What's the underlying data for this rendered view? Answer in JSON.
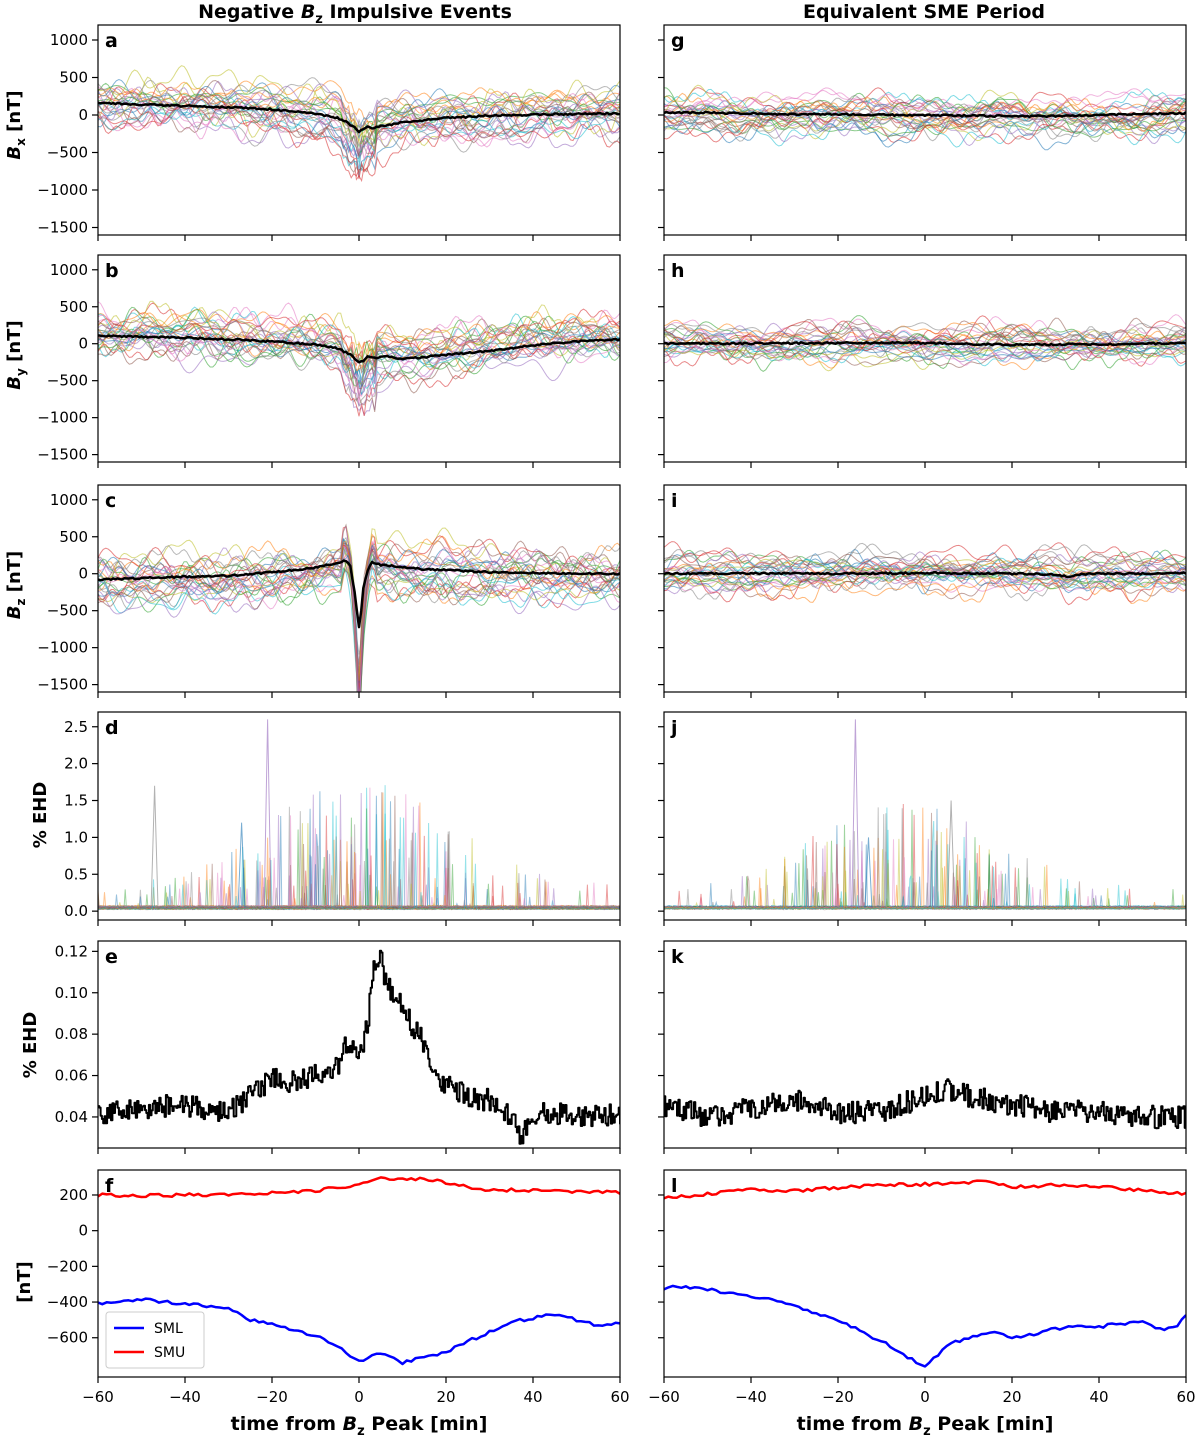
{
  "figure": {
    "columns": [
      {
        "title_prefix": "Negative ",
        "title_symbol": "B",
        "title_sub": "z",
        "title_suffix": " Impulsive Events"
      },
      {
        "title_prefix": "Equivalent SME Period",
        "title_symbol": "",
        "title_sub": "",
        "title_suffix": ""
      }
    ],
    "xlabel": {
      "prefix": "time from ",
      "symbol": "B",
      "sub": "z",
      "suffix": " Peak [min]"
    },
    "x_ticks": [
      "−60",
      "−40",
      "−20",
      "0",
      "20",
      "40",
      "60"
    ],
    "legend": {
      "placement": "lower-left",
      "entries": [
        {
          "name": "SML",
          "color": "#0000ff"
        },
        {
          "name": "SMU",
          "color": "#ff0000"
        }
      ]
    },
    "mean_line_color": "#000000",
    "thin_line_colors": [
      "#1f77b4",
      "#ff7f0e",
      "#2ca02c",
      "#d62728",
      "#9467bd",
      "#8c564b",
      "#e377c2",
      "#7f7f7f",
      "#bcbd22",
      "#17becf"
    ]
  },
  "rows": [
    {
      "key": "bx",
      "ylabel": {
        "symbol": "B",
        "sub": "x",
        "suffix": " [nT]"
      },
      "y_ticks": [
        "1000",
        "500",
        "0",
        "−500",
        "−1000",
        "−1500"
      ]
    },
    {
      "key": "by",
      "ylabel": {
        "symbol": "B",
        "sub": "y",
        "suffix": " [nT]"
      },
      "y_ticks": [
        "1000",
        "500",
        "0",
        "−500",
        "−1000",
        "−1500"
      ]
    },
    {
      "key": "bz",
      "ylabel": {
        "symbol": "B",
        "sub": "z",
        "suffix": " [nT]"
      },
      "y_ticks": [
        "1000",
        "500",
        "0",
        "−500",
        "−1000",
        "−1500"
      ]
    },
    {
      "key": "ehd_all",
      "ylabel": {
        "symbol": "",
        "sub": "",
        "suffix": "% EHD"
      },
      "y_ticks": [
        "2.5",
        "2.0",
        "1.5",
        "1.0",
        "0.5",
        "0.0"
      ]
    },
    {
      "key": "ehd_mean",
      "ylabel": {
        "symbol": "",
        "sub": "",
        "suffix": "% EHD"
      },
      "y_ticks": [
        "0.12",
        "0.10",
        "0.08",
        "0.06",
        "0.04"
      ]
    },
    {
      "key": "sm",
      "ylabel": {
        "symbol": "",
        "sub": "",
        "suffix": "[nT]"
      },
      "y_ticks": [
        "200",
        "0",
        "−200",
        "−400",
        "−600"
      ]
    }
  ],
  "chart_data": [
    {
      "panel": "a",
      "type": "line",
      "column": "left",
      "ylim": [
        -1600,
        1200
      ],
      "xlim": [
        -60,
        60
      ],
      "series": [
        {
          "role": "mean",
          "x": [
            -60,
            -50,
            -40,
            -30,
            -20,
            -10,
            -5,
            -3,
            -1,
            0,
            1,
            2,
            3,
            5,
            8,
            10,
            15,
            20,
            30,
            40,
            50,
            60
          ],
          "y": [
            165,
            140,
            120,
            105,
            75,
            15,
            -40,
            -90,
            -170,
            -230,
            -190,
            -160,
            -180,
            -150,
            -120,
            -100,
            -70,
            -40,
            -10,
            5,
            15,
            20
          ]
        }
      ]
    },
    {
      "panel": "g",
      "type": "line",
      "column": "right",
      "ylim": [
        -1600,
        1200
      ],
      "xlim": [
        -60,
        60
      ],
      "series": [
        {
          "role": "mean",
          "x": [
            -60,
            -50,
            -40,
            -30,
            -20,
            -10,
            0,
            10,
            20,
            30,
            40,
            50,
            60
          ],
          "y": [
            30,
            30,
            20,
            10,
            10,
            0,
            0,
            -10,
            -15,
            -15,
            0,
            15,
            25
          ]
        }
      ]
    },
    {
      "panel": "b",
      "type": "line",
      "column": "left",
      "ylim": [
        -1600,
        1200
      ],
      "xlim": [
        -60,
        60
      ],
      "series": [
        {
          "role": "mean",
          "x": [
            -60,
            -50,
            -40,
            -30,
            -20,
            -10,
            -5,
            -2,
            0,
            1,
            2,
            4,
            6,
            10,
            15,
            20,
            30,
            40,
            50,
            60
          ],
          "y": [
            110,
            95,
            80,
            60,
            30,
            -10,
            -60,
            -150,
            -250,
            -230,
            -180,
            -200,
            -170,
            -210,
            -180,
            -150,
            -100,
            -20,
            30,
            60
          ]
        }
      ]
    },
    {
      "panel": "h",
      "type": "line",
      "column": "right",
      "ylim": [
        -1600,
        1200
      ],
      "xlim": [
        -60,
        60
      ],
      "series": [
        {
          "role": "mean",
          "x": [
            -60,
            -40,
            -20,
            0,
            20,
            40,
            60
          ],
          "y": [
            0,
            5,
            10,
            10,
            -15,
            -5,
            5
          ]
        }
      ]
    },
    {
      "panel": "c",
      "type": "line",
      "column": "left",
      "ylim": [
        -1600,
        1200
      ],
      "xlim": [
        -60,
        60
      ],
      "series": [
        {
          "role": "mean",
          "x": [
            -60,
            -50,
            -40,
            -30,
            -20,
            -10,
            -5,
            -3,
            -2,
            -1,
            0,
            0.5,
            1,
            2,
            3,
            5,
            10,
            15,
            20,
            30,
            40,
            50,
            60
          ],
          "y": [
            -80,
            -60,
            -40,
            -30,
            20,
            80,
            150,
            180,
            100,
            -250,
            -720,
            -500,
            -200,
            50,
            150,
            120,
            90,
            60,
            50,
            20,
            10,
            0,
            0
          ]
        }
      ]
    },
    {
      "panel": "i",
      "type": "line",
      "column": "right",
      "ylim": [
        -1600,
        1200
      ],
      "xlim": [
        -60,
        60
      ],
      "series": [
        {
          "role": "mean",
          "x": [
            -60,
            -40,
            -20,
            0,
            20,
            30,
            33,
            36,
            40,
            50,
            60
          ],
          "y": [
            0,
            5,
            0,
            10,
            0,
            -10,
            -40,
            -10,
            0,
            0,
            10
          ]
        }
      ]
    },
    {
      "panel": "d",
      "type": "line",
      "column": "left",
      "ylim": [
        -0.12,
        2.7
      ],
      "xlim": [
        -60,
        60
      ],
      "series": [
        {
          "role": "ensemble-background",
          "y_typical": 0.05,
          "y_max": 2.6
        }
      ]
    },
    {
      "panel": "j",
      "type": "line",
      "column": "right",
      "ylim": [
        -0.12,
        2.7
      ],
      "xlim": [
        -60,
        60
      ],
      "series": [
        {
          "role": "ensemble-background",
          "y_typical": 0.05,
          "y_max": 2.6
        }
      ]
    },
    {
      "panel": "e",
      "type": "line",
      "column": "left",
      "ylim": [
        0.025,
        0.125
      ],
      "xlim": [
        -60,
        60
      ],
      "series": [
        {
          "role": "mean",
          "x": [
            -60,
            -40,
            -30,
            -25,
            -20,
            -15,
            -10,
            -5,
            -3,
            0,
            2,
            3,
            4,
            5,
            6,
            8,
            10,
            12,
            15,
            18,
            20,
            25,
            30,
            35,
            37,
            40,
            50,
            60
          ],
          "y": [
            0.042,
            0.046,
            0.042,
            0.05,
            0.059,
            0.057,
            0.06,
            0.065,
            0.076,
            0.07,
            0.085,
            0.11,
            0.112,
            0.12,
            0.105,
            0.1,
            0.092,
            0.085,
            0.075,
            0.06,
            0.055,
            0.05,
            0.048,
            0.04,
            0.03,
            0.042,
            0.041,
            0.041
          ]
        }
      ]
    },
    {
      "panel": "k",
      "type": "line",
      "column": "right",
      "ylim": [
        0.025,
        0.125
      ],
      "xlim": [
        -60,
        60
      ],
      "series": [
        {
          "role": "mean",
          "x": [
            -60,
            -50,
            -40,
            -30,
            -20,
            -10,
            0,
            5,
            10,
            20,
            30,
            40,
            50,
            60
          ],
          "y": [
            0.046,
            0.04,
            0.044,
            0.048,
            0.042,
            0.043,
            0.05,
            0.054,
            0.05,
            0.046,
            0.042,
            0.043,
            0.04,
            0.04
          ]
        }
      ]
    },
    {
      "panel": "f",
      "type": "line",
      "column": "left",
      "ylim": [
        -820,
        340
      ],
      "xlim": [
        -60,
        60
      ],
      "series": [
        {
          "name": "SML",
          "x": [
            -60,
            -55,
            -50,
            -45,
            -40,
            -35,
            -30,
            -25,
            -20,
            -15,
            -10,
            -5,
            0,
            5,
            10,
            15,
            20,
            25,
            30,
            35,
            40,
            45,
            50,
            55,
            60
          ],
          "y": [
            -410,
            -400,
            -385,
            -400,
            -410,
            -420,
            -430,
            -500,
            -520,
            -560,
            -590,
            -650,
            -730,
            -690,
            -740,
            -710,
            -680,
            -620,
            -570,
            -510,
            -490,
            -470,
            -500,
            -530,
            -520
          ]
        },
        {
          "name": "SMU",
          "x": [
            -60,
            -50,
            -40,
            -30,
            -20,
            -10,
            -5,
            0,
            5,
            10,
            15,
            20,
            25,
            30,
            40,
            50,
            60
          ],
          "y": [
            200,
            195,
            200,
            205,
            210,
            225,
            240,
            260,
            295,
            285,
            290,
            270,
            245,
            230,
            225,
            220,
            215
          ]
        }
      ]
    },
    {
      "panel": "l",
      "type": "line",
      "column": "right",
      "ylim": [
        -820,
        340
      ],
      "xlim": [
        -60,
        60
      ],
      "series": [
        {
          "name": "SML",
          "x": [
            -60,
            -55,
            -50,
            -45,
            -40,
            -35,
            -30,
            -25,
            -20,
            -15,
            -10,
            -5,
            -2,
            0,
            2,
            5,
            10,
            15,
            20,
            25,
            30,
            35,
            40,
            45,
            50,
            55,
            58,
            60
          ],
          "y": [
            -320,
            -315,
            -330,
            -350,
            -370,
            -390,
            -420,
            -460,
            -500,
            -560,
            -620,
            -690,
            -740,
            -755,
            -720,
            -640,
            -600,
            -570,
            -600,
            -580,
            -550,
            -530,
            -540,
            -520,
            -510,
            -560,
            -530,
            -480
          ]
        },
        {
          "name": "SMU",
          "x": [
            -60,
            -50,
            -40,
            -30,
            -20,
            -10,
            0,
            10,
            13,
            20,
            30,
            40,
            50,
            60
          ],
          "y": [
            180,
            205,
            230,
            225,
            240,
            255,
            260,
            270,
            285,
            245,
            255,
            250,
            225,
            205
          ]
        }
      ]
    }
  ]
}
